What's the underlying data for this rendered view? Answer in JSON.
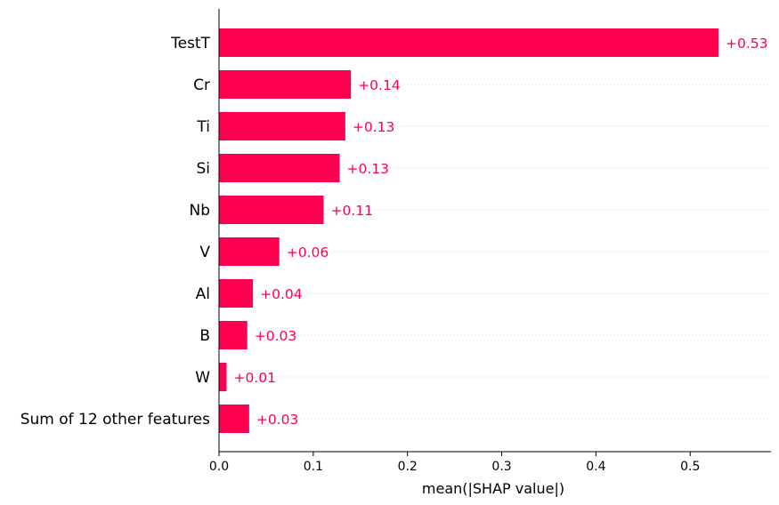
{
  "chart_data": {
    "type": "bar",
    "orientation": "horizontal",
    "title": "",
    "xlabel": "mean(|SHAP value|)",
    "ylabel": "",
    "xlim": [
      0,
      0.585
    ],
    "xticks": [
      0.0,
      0.1,
      0.2,
      0.3,
      0.4,
      0.5
    ],
    "xtick_labels": [
      "0.0",
      "0.1",
      "0.2",
      "0.3",
      "0.4",
      "0.5"
    ],
    "categories": [
      "TestT",
      "Cr",
      "Ti",
      "Si",
      "Nb",
      "V",
      "Al",
      "B",
      "W",
      "Sum of 12 other features"
    ],
    "values": [
      0.53,
      0.14,
      0.134,
      0.128,
      0.111,
      0.064,
      0.036,
      0.03,
      0.008,
      0.032
    ],
    "value_labels": [
      "+0.53",
      "+0.14",
      "+0.13",
      "+0.13",
      "+0.11",
      "+0.06",
      "+0.04",
      "+0.03",
      "+0.01",
      "+0.03"
    ],
    "bar_color": "#ff0051",
    "label_color": "#ff0051",
    "grid": "dotted horizontal row guides"
  }
}
